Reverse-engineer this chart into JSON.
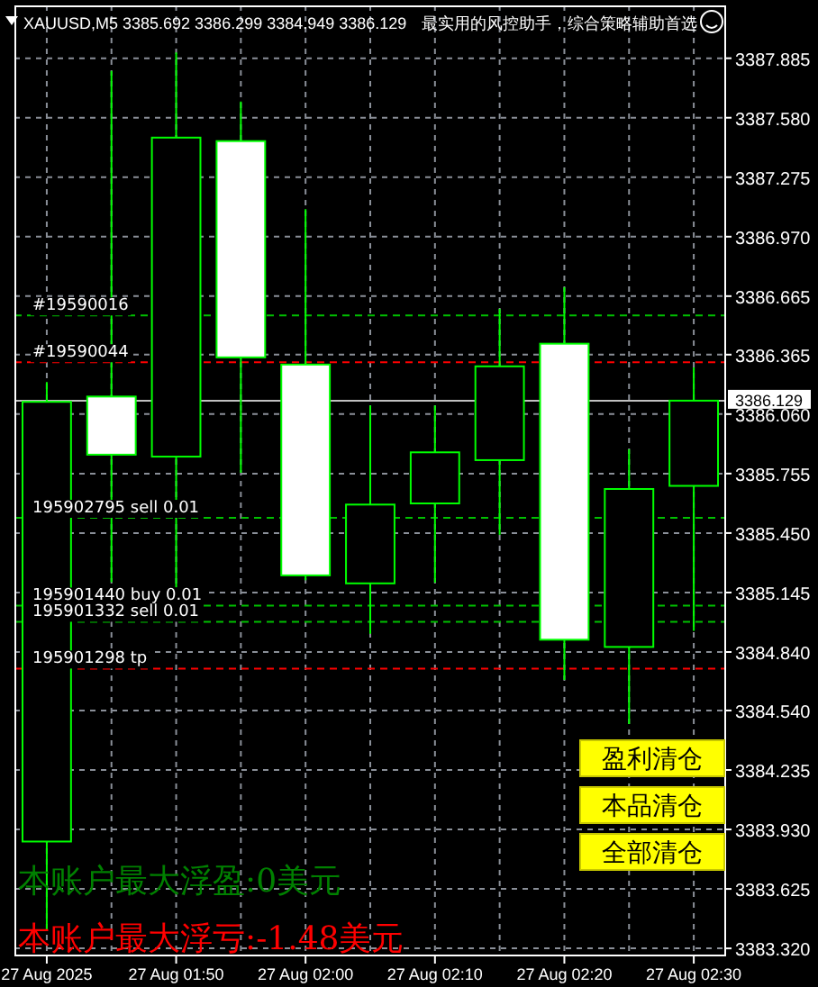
{
  "chart_data": {
    "type": "candlestick",
    "title": "XAUUSD,M5 3385.692 3386.299 3384.949 3386.129",
    "subtitle": "最实用的风控助手，综合策略辅助首选",
    "categories": [
      "27 Aug 2025",
      null,
      "27 Aug 01:50",
      null,
      "27 Aug 02:00",
      null,
      "27 Aug 02:10",
      null,
      "27 Aug 02:20",
      null,
      "27 Aug 02:30"
    ],
    "ohlc": [
      [
        3383.868,
        3386.224,
        3383.415,
        3386.123
      ],
      [
        3386.15,
        3387.82,
        3385.198,
        3385.852
      ],
      [
        3385.842,
        3387.915,
        3385.171,
        3387.478
      ],
      [
        3387.46,
        3387.663,
        3385.759,
        3386.351
      ],
      [
        3386.314,
        3387.111,
        3385.208,
        3385.233
      ],
      [
        3385.192,
        3386.104,
        3384.933,
        3385.596
      ],
      [
        3385.602,
        3386.104,
        3385.196,
        3385.864
      ],
      [
        3385.824,
        3386.6,
        3385.441,
        3386.305
      ],
      [
        3386.421,
        3386.711,
        3384.697,
        3384.903
      ],
      [
        3384.866,
        3385.879,
        3384.471,
        3385.676
      ],
      [
        3385.692,
        3386.299,
        3384.949,
        3386.129
      ]
    ],
    "color": "#00ff00",
    "ylim": [
      3383.279,
      3388.156
    ],
    "yticks": [
      {
        "value": 3383.32,
        "label": "3383.320"
      },
      {
        "value": 3383.625,
        "label": "3383.625"
      },
      {
        "value": 3383.93,
        "label": "3383.930"
      },
      {
        "value": 3384.235,
        "label": "3384.235"
      },
      {
        "value": 3384.54,
        "label": "3384.540"
      },
      {
        "value": 3384.84,
        "label": "3384.840"
      },
      {
        "value": 3385.145,
        "label": "3385.145"
      },
      {
        "value": 3385.45,
        "label": "3385.450"
      },
      {
        "value": 3385.755,
        "label": "3385.755"
      },
      {
        "value": 3386.06,
        "label": "3386.060"
      },
      {
        "value": 3386.365,
        "label": "3386.365"
      },
      {
        "value": 3386.665,
        "label": "3386.665"
      },
      {
        "value": 3386.97,
        "label": "3386.970"
      },
      {
        "value": 3387.275,
        "label": "3387.275"
      },
      {
        "value": 3387.58,
        "label": "3387.580"
      },
      {
        "value": 3387.885,
        "label": "3387.885"
      }
    ],
    "grid": true,
    "ref_lines": [
      {
        "axis": "y",
        "value": 3386.566,
        "color": "#00c000",
        "line_style": "dashed"
      },
      {
        "axis": "y",
        "value": 3386.326,
        "color": "#ff0000",
        "line_style": "dashed"
      },
      {
        "axis": "y",
        "value": 3386.129,
        "label": "3386.129",
        "color": "#c0c0c0",
        "line_style": "solid"
      },
      {
        "axis": "y",
        "value": 3385.528,
        "color": "#00c000",
        "line_style": "dashed"
      },
      {
        "axis": "y",
        "value": 3385.078,
        "color": "#00c000",
        "line_style": "dashed"
      },
      {
        "axis": "y",
        "value": 3384.995,
        "color": "#00c000",
        "line_style": "dashed"
      },
      {
        "axis": "y",
        "value": 3384.755,
        "color": "#ff0000",
        "line_style": "dashed"
      }
    ],
    "annotations": [
      "盈利清仓",
      "本品清仓",
      "全部清仓",
      "本账户最大浮盈:0美元",
      "本账户最大浮亏:-1.48美元",
      {
        "text": "#19590016",
        "y": 3386.566
      },
      {
        "text": "#19590044",
        "y": 3386.326
      },
      {
        "text": "195902795 sell 0.01",
        "y": 3385.528
      },
      {
        "text": "195901440 buy 0.01",
        "y": 3385.078
      },
      {
        "text": "195901332 sell 0.01",
        "y": 3384.995
      },
      {
        "text": "195901298 tp",
        "y": 3384.755
      }
    ]
  }
}
